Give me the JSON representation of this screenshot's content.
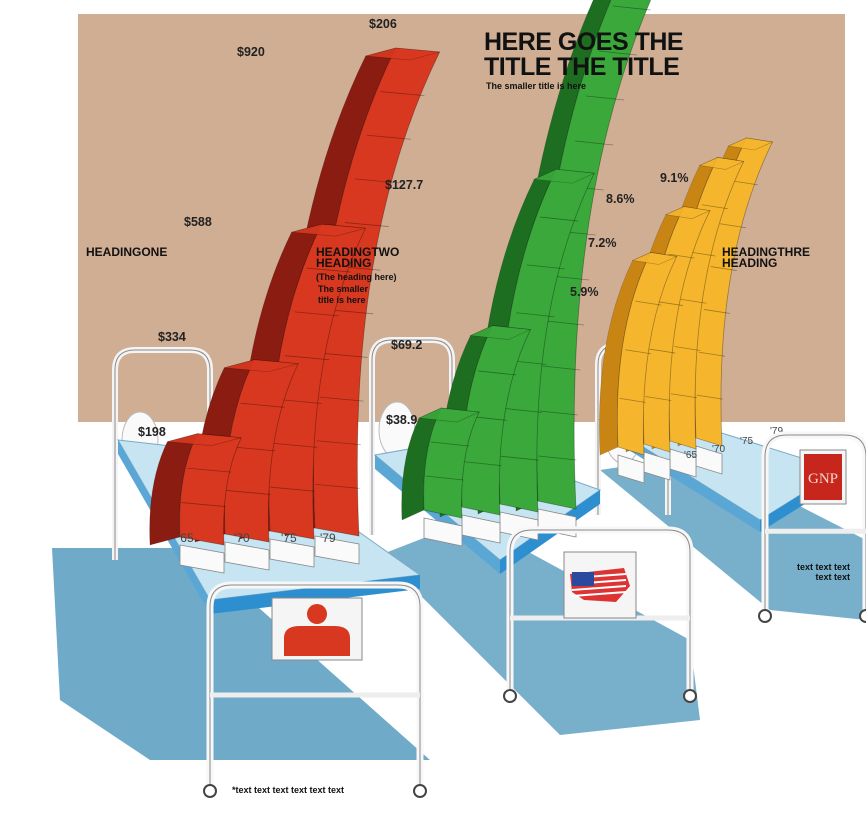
{
  "title": "HERE GOES THE TITLE THE TITLE",
  "subtitle": "The smaller title is here",
  "colors": {
    "wall": "#cfae94",
    "red": "#d8381f",
    "red_dark": "#8a1c12",
    "green": "#3aa83a",
    "green_dark": "#1e6e22",
    "yellow": "#f5b62e",
    "yellow_dark": "#c98514",
    "mattress": "#c7e4f2",
    "sheet_edge": "#2d8fd0",
    "shadow": "#3f8fb7"
  },
  "chart_data": [
    {
      "type": "bar",
      "heading": "HEADINGONE",
      "categories": [
        "'65",
        "'70",
        "'75",
        "'79"
      ],
      "values": [
        198,
        334,
        588,
        920
      ],
      "value_labels": [
        "$198",
        "$334",
        "$588",
        "$920"
      ],
      "bed_icon": "person-icon"
    },
    {
      "type": "bar",
      "heading": "HEADINGTWO HEADING",
      "heading_note_1": "(The heading here)",
      "heading_note_2": "The smaller title is here",
      "categories": [
        "'65",
        "'70",
        "'75",
        "'79"
      ],
      "values": [
        38.9,
        69.2,
        127.7,
        206
      ],
      "value_labels": [
        "$38.9",
        "$69.2",
        "$127.7",
        "$206"
      ],
      "bed_icon": "usa-flag-map-icon"
    },
    {
      "type": "bar",
      "heading": "HEADINGTHRE HEADING",
      "categories": [
        "'65",
        "'70",
        "'75",
        "'79"
      ],
      "values": [
        5.9,
        7.2,
        8.6,
        9.1
      ],
      "value_labels": [
        "5.9%",
        "7.2%",
        "8.6%",
        "9.1%"
      ],
      "bed_sign": "GNP"
    }
  ],
  "footnote_left": "*text text text text text text",
  "footnote_right": "text text text text text"
}
